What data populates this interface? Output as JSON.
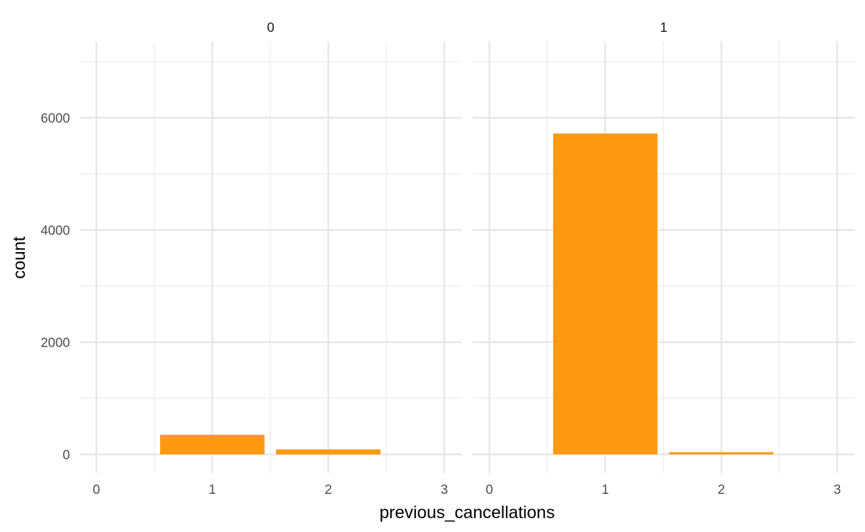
{
  "chart_data": {
    "type": "bar",
    "xlabel": "previous_cancellations",
    "ylabel": "count",
    "xlim": [
      -0.2,
      3.2
    ],
    "ylim": [
      0,
      7200
    ],
    "x_ticks": [
      "0",
      "1",
      "2",
      "3"
    ],
    "y_ticks": [
      "0",
      "2000",
      "4000",
      "6000"
    ],
    "grid": true,
    "bar_color": "#FF9911",
    "facets": [
      {
        "label": "0",
        "bars": [
          {
            "x": 1,
            "value": 350
          },
          {
            "x": 2,
            "value": 90
          }
        ]
      },
      {
        "label": "1",
        "bars": [
          {
            "x": 1,
            "value": 5720
          },
          {
            "x": 2,
            "value": 40
          }
        ]
      }
    ]
  }
}
